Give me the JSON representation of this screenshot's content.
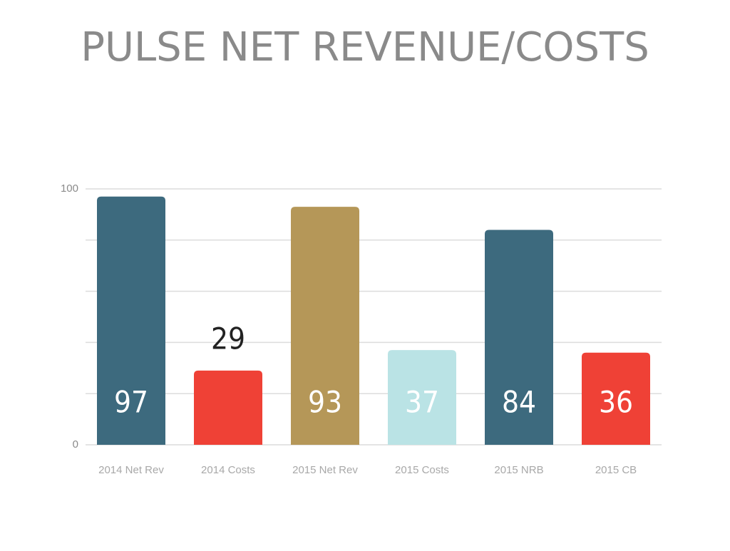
{
  "chart_data": {
    "type": "bar",
    "title": "PULSE NET REVENUE/COSTS",
    "categories": [
      "2014 Net Rev",
      "2014 Costs",
      "2015 Net Rev",
      "2015 Costs",
      "2015 NRB",
      "2015 CB"
    ],
    "values": [
      97,
      29,
      93,
      37,
      84,
      36
    ],
    "colors": [
      "#3d6a7e",
      "#ef4136",
      "#b59758",
      "#bae3e5",
      "#3d6a7e",
      "#ef4136"
    ],
    "ylim": [
      0,
      100
    ],
    "yticks": [
      0,
      100
    ],
    "grid_values": [
      0,
      20,
      40,
      60,
      80,
      100
    ],
    "grid": true
  }
}
